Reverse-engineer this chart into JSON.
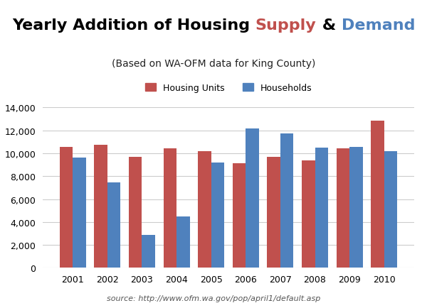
{
  "title_parts": [
    {
      "text": "Yearly Addition of Housing ",
      "color": "#000000"
    },
    {
      "text": "Supply",
      "color": "#C0504D"
    },
    {
      "text": " & ",
      "color": "#000000"
    },
    {
      "text": "Demand",
      "color": "#4F81BD"
    }
  ],
  "subtitle": "(Based on WA-OFM data for King County)",
  "source": "source: http://www.ofm.wa.gov/pop/april1/default.asp",
  "years": [
    "2001",
    "2002",
    "2003",
    "2004",
    "2005",
    "2006",
    "2007",
    "2008",
    "2009",
    "2010"
  ],
  "housing_units": [
    10550,
    10750,
    9700,
    10400,
    10200,
    9100,
    9700,
    9350,
    10400,
    12850
  ],
  "households": [
    9650,
    7450,
    2900,
    4500,
    9200,
    12150,
    11750,
    10500,
    10550,
    10150
  ],
  "bar_color_supply": "#C0504D",
  "bar_color_demand": "#4F81BD",
  "ylim": [
    0,
    14000
  ],
  "yticks": [
    0,
    2000,
    4000,
    6000,
    8000,
    10000,
    12000,
    14000
  ],
  "legend_supply": "Housing Units",
  "legend_demand": "Households",
  "background_color": "#FFFFFF",
  "grid_color": "#CCCCCC",
  "title_fontsize": 16,
  "subtitle_fontsize": 10,
  "axis_label_fontsize": 9,
  "tick_fontsize": 9,
  "source_fontsize": 8
}
